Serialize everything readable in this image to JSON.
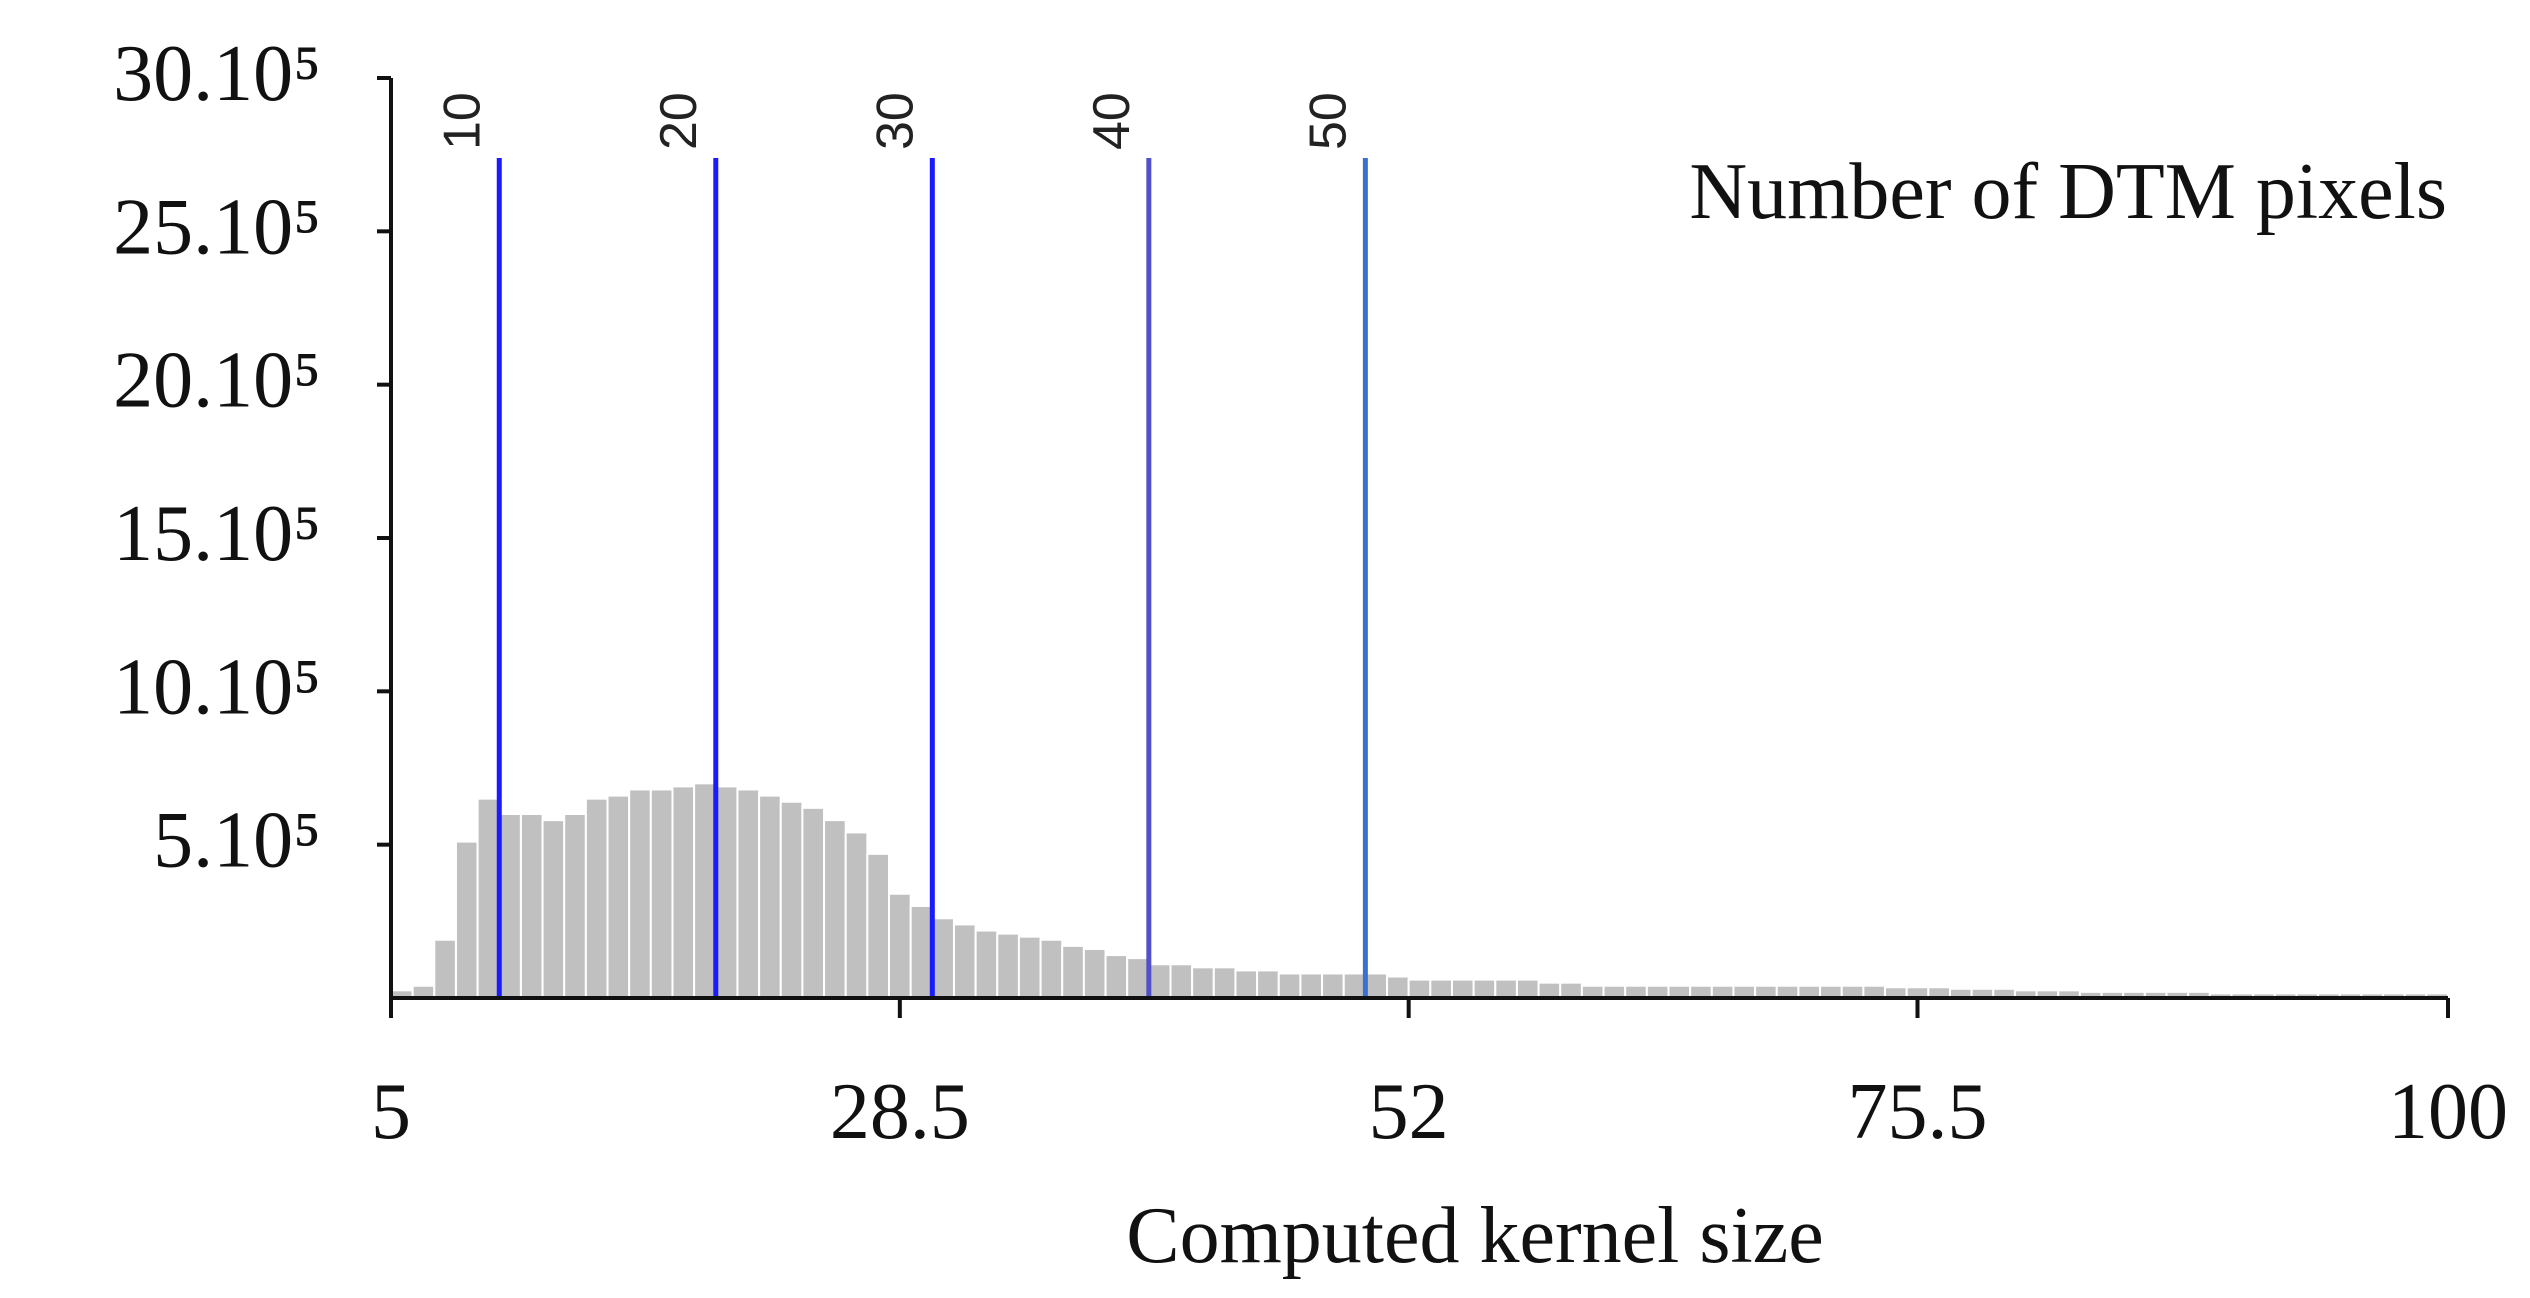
{
  "chart_data": {
    "type": "histogram",
    "annotation": "Number of  DTM pixels",
    "x_label": "Computed kernel size",
    "bins": [
      5,
      6,
      7,
      8,
      9,
      10,
      11,
      12,
      13,
      14,
      15,
      16,
      17,
      18,
      19,
      20,
      21,
      22,
      23,
      24,
      25,
      26,
      27,
      28,
      29,
      30,
      31,
      32,
      33,
      34,
      35,
      36,
      37,
      38,
      39,
      40,
      41,
      42,
      43,
      44,
      45,
      46,
      47,
      48,
      49,
      50,
      51,
      52,
      53,
      54,
      55,
      56,
      57,
      58,
      59,
      60,
      61,
      62,
      63,
      64,
      65,
      66,
      67,
      68,
      69,
      70,
      71,
      72,
      73,
      74,
      75,
      76,
      77,
      78,
      79,
      80,
      81,
      82,
      83,
      84,
      85,
      86,
      87,
      88,
      89,
      90,
      91,
      92,
      93,
      94,
      95,
      96,
      97,
      98,
      99,
      100
    ],
    "values": [
      25000,
      40000,
      190000,
      510000,
      650000,
      600000,
      600000,
      580000,
      600000,
      650000,
      660000,
      680000,
      680000,
      690000,
      700000,
      690000,
      680000,
      660000,
      640000,
      620000,
      580000,
      540000,
      470000,
      340000,
      300000,
      260000,
      240000,
      220000,
      210000,
      200000,
      190000,
      170000,
      160000,
      140000,
      130000,
      110000,
      110000,
      100000,
      100000,
      90000,
      90000,
      80000,
      80000,
      80000,
      80000,
      80000,
      70000,
      60000,
      60000,
      60000,
      60000,
      60000,
      60000,
      50000,
      50000,
      40000,
      40000,
      40000,
      40000,
      40000,
      40000,
      40000,
      40000,
      40000,
      40000,
      40000,
      40000,
      40000,
      40000,
      35000,
      35000,
      35000,
      30000,
      30000,
      30000,
      25000,
      25000,
      25000,
      20000,
      20000,
      20000,
      20000,
      20000,
      20000,
      15000,
      15000,
      15000,
      15000,
      15000,
      15000,
      15000,
      15000,
      15000,
      15000,
      15000
    ],
    "color": "#c0c0c0",
    "vlines": {
      "values": [
        10,
        20,
        30,
        40,
        50
      ],
      "colors": [
        "#1a1aff",
        "#1a1aff",
        "#1a1aff",
        "#5050c8",
        "#3a70d0"
      ]
    },
    "xlim": [
      5,
      100
    ],
    "xticks": [
      5,
      28.5,
      52,
      75.5,
      100
    ],
    "ylim": [
      0,
      3000000
    ],
    "yticks": [
      {
        "value": 500000,
        "label": "5.10⁵"
      },
      {
        "value": 1000000,
        "label": "10.10⁵"
      },
      {
        "value": 1500000,
        "label": "15.10⁵"
      },
      {
        "value": 2000000,
        "label": "20.10⁵"
      },
      {
        "value": 2500000,
        "label": "25.10⁵"
      },
      {
        "value": 3000000,
        "label": "30.10⁵"
      }
    ]
  }
}
